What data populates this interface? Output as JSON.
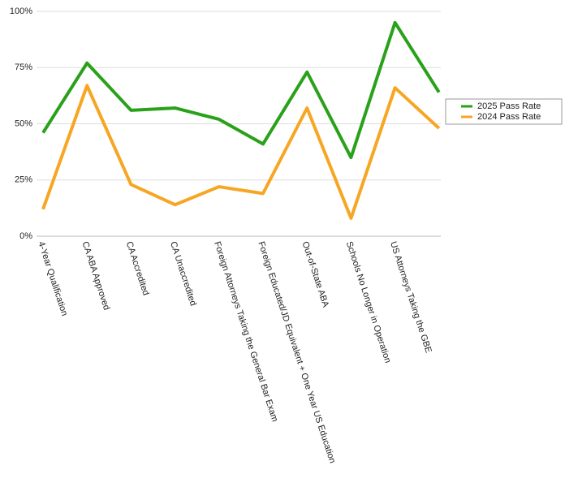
{
  "chart_data": {
    "type": "line",
    "categories": [
      "4-Year Qualification",
      "CA ABA Approved",
      "CA Accredited",
      "CA Unaccredited",
      "Foreign Attorneys Taking the General Bar Exam",
      "Foreign Educated/JD Equivalent + One Year US Education",
      "Out-of-State ABA",
      "Schools No Longer in Operation",
      "US Attorneys Taking the GBE",
      null
    ],
    "series": [
      {
        "name": "2025 Pass Rate",
        "color": "#2aa11a",
        "values": [
          46,
          77,
          56,
          57,
          52,
          41,
          73,
          35,
          95,
          64
        ]
      },
      {
        "name": "2024 Pass Rate",
        "color": "#f7a623",
        "values": [
          12,
          67,
          23,
          14,
          22,
          19,
          57,
          8,
          66,
          48
        ]
      }
    ],
    "ylim": [
      0,
      100
    ],
    "yticks": [
      {
        "value": 0,
        "label": "0%"
      },
      {
        "value": 25,
        "label": "25%"
      },
      {
        "value": 50,
        "label": "50%"
      },
      {
        "value": 75,
        "label": "75%"
      },
      {
        "value": 100,
        "label": "100%"
      }
    ],
    "grid": true,
    "legend": "right"
  }
}
